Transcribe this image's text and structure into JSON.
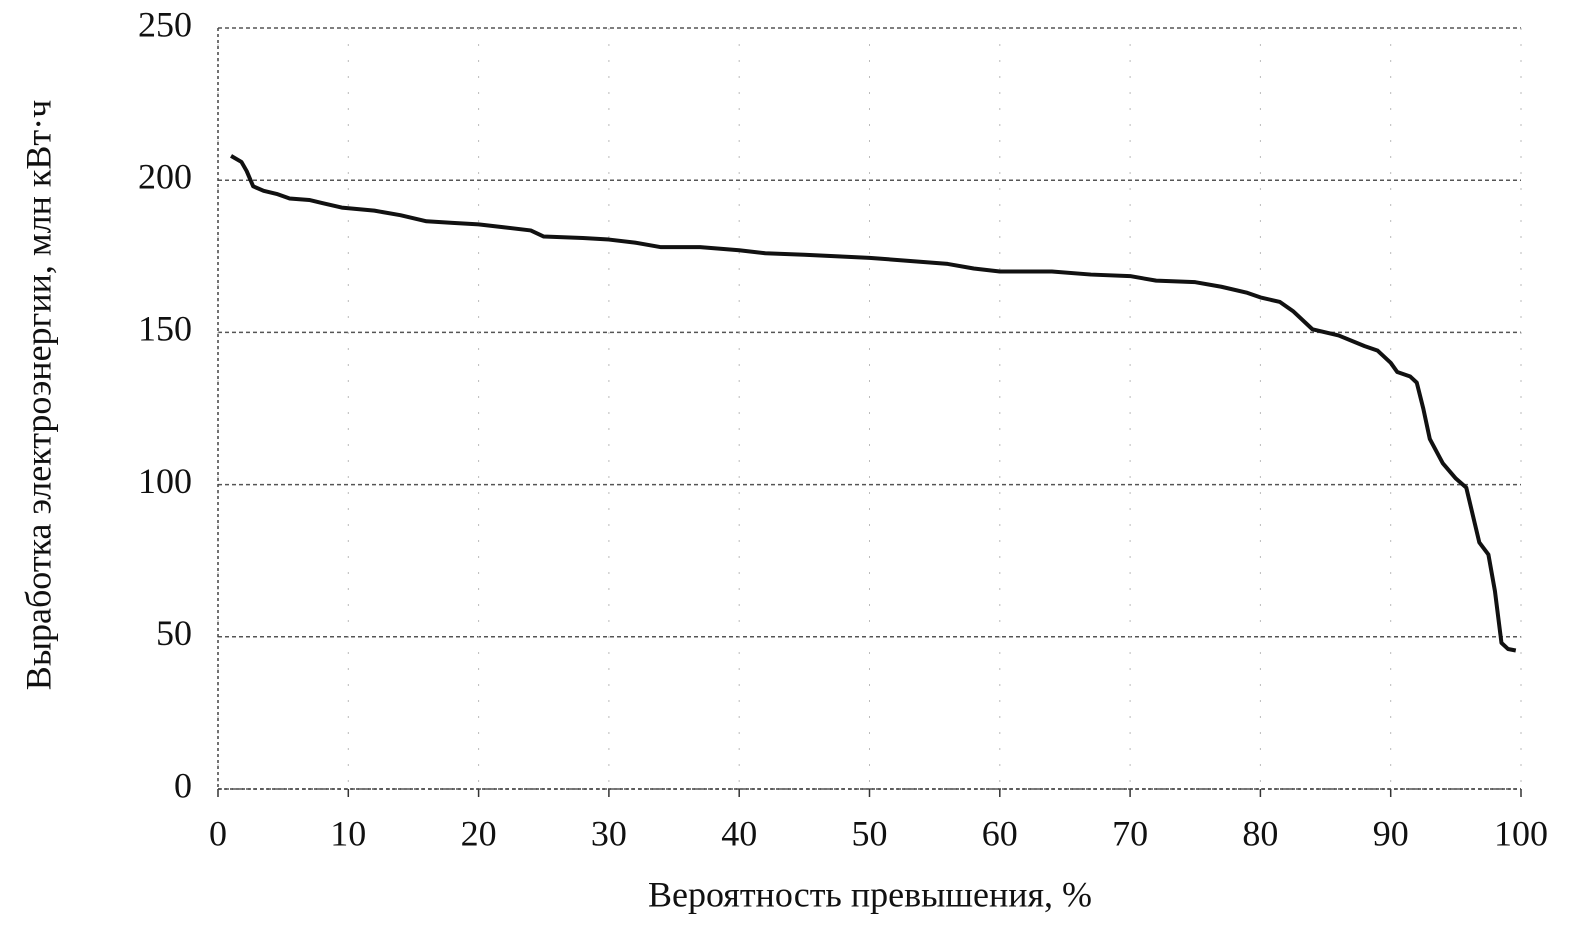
{
  "chart_data": {
    "type": "line",
    "x_label": "Вероятность превышения, %",
    "y_label": "Выработка электроэнергии, млн кВт·ч",
    "xlim": [
      0,
      100
    ],
    "xticks": [
      0,
      10,
      20,
      30,
      40,
      50,
      60,
      70,
      80,
      90,
      100
    ],
    "ylim": [
      0,
      250
    ],
    "yticks": [
      0,
      50,
      100,
      150,
      200,
      250
    ],
    "grid": true,
    "x": [
      1.0,
      1.8,
      2.2,
      2.7,
      3.5,
      4.5,
      5.5,
      7,
      8,
      9.5,
      12,
      14,
      16,
      18,
      20,
      22,
      24,
      25,
      28,
      30,
      32,
      34,
      37,
      40,
      42,
      45,
      50,
      53,
      56,
      58,
      60,
      64,
      67,
      70,
      72,
      75,
      77,
      79,
      80,
      81.5,
      82.5,
      84,
      86,
      88,
      89,
      90,
      90.5,
      91.5,
      92,
      92.5,
      93,
      94,
      95,
      95.8,
      96.3,
      96.8,
      97.5,
      98,
      98.5,
      99,
      99.6
    ],
    "series": [
      {
        "color": "#111111",
        "values": [
          208,
          206,
          203,
          198,
          196.5,
          195.5,
          194,
          193.5,
          192.5,
          191,
          190,
          188.5,
          186.5,
          186,
          185.5,
          184.5,
          183.5,
          181.5,
          181,
          180.5,
          179.5,
          178,
          178,
          177,
          176,
          175.5,
          174.5,
          173.5,
          172.5,
          171,
          170,
          170,
          169,
          168.5,
          167,
          166.5,
          165,
          163,
          161.5,
          160,
          157,
          151,
          149,
          145.5,
          144,
          140,
          137,
          135.5,
          133.5,
          125,
          115,
          107,
          102,
          99,
          90,
          81,
          77,
          65,
          48,
          46,
          45.5
        ]
      }
    ]
  }
}
